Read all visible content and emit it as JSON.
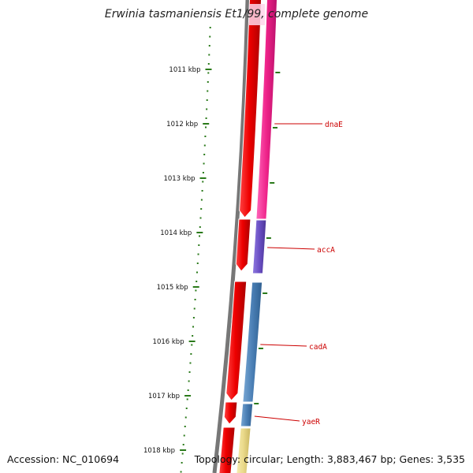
{
  "title": "Erwinia tasmaniensis Et1/99, complete genome",
  "accession": "Accession: NC_010694",
  "topology": "Topology: circular; Length: 3,883,467 bp; Genes: 3,535",
  "ruler_labels": [
    "1011 kbp",
    "1012 kbp",
    "1013 kbp",
    "1014 kbp",
    "1015 kbp",
    "1016 kbp",
    "1017 kbp",
    "1018 kbp"
  ],
  "gene_labels": [
    "dnaE",
    "accA",
    "cadA",
    "yaeR"
  ],
  "colors": {
    "backbone": "#777777",
    "ruler": "#2a7a1a",
    "forward_strand": "#ee1111",
    "dnaE": "#ee2288",
    "accA": "#6a4fc4",
    "cadA": "#4a7fb5",
    "yaeR": "#4a7fb5",
    "next_gene": "#ead98a",
    "gene_label": "#cc0000"
  }
}
